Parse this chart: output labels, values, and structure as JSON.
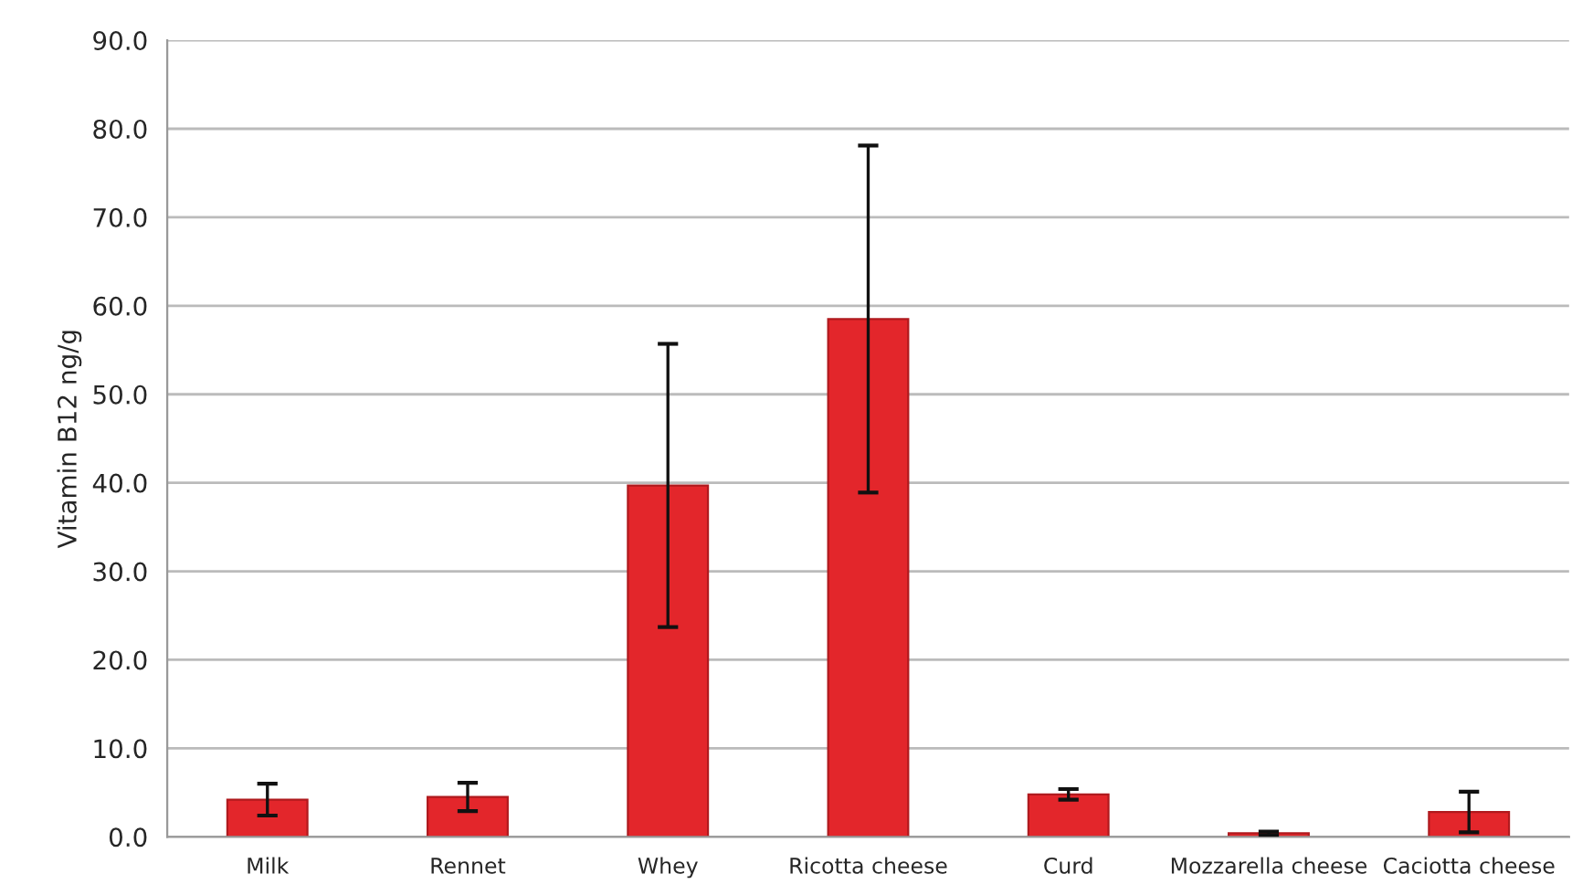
{
  "chart_data": {
    "type": "bar",
    "ylabel": "Vitamin B12 ng/g",
    "categories": [
      "Milk",
      "Rennet",
      "Whey",
      "Ricotta cheese",
      "Curd",
      "Mozzarella cheese",
      "Caciotta cheese"
    ],
    "values": [
      4.2,
      4.5,
      39.7,
      58.5,
      4.8,
      0.4,
      2.8
    ],
    "errors": [
      1.8,
      1.6,
      16.0,
      19.6,
      0.6,
      0.2,
      2.3
    ],
    "color": "#e3262b",
    "ylim": [
      0,
      90
    ],
    "yticks": [
      {
        "value": 0,
        "label": "0.0"
      },
      {
        "value": 10,
        "label": "10.0"
      },
      {
        "value": 20,
        "label": "20.0"
      },
      {
        "value": 30,
        "label": "30.0"
      },
      {
        "value": 40,
        "label": "40.0"
      },
      {
        "value": 50,
        "label": "50.0"
      },
      {
        "value": 60,
        "label": "60.0"
      },
      {
        "value": 70,
        "label": "70.0"
      },
      {
        "value": 80,
        "label": "80.0"
      },
      {
        "value": 90,
        "label": "90.0"
      }
    ],
    "grid": "y"
  }
}
